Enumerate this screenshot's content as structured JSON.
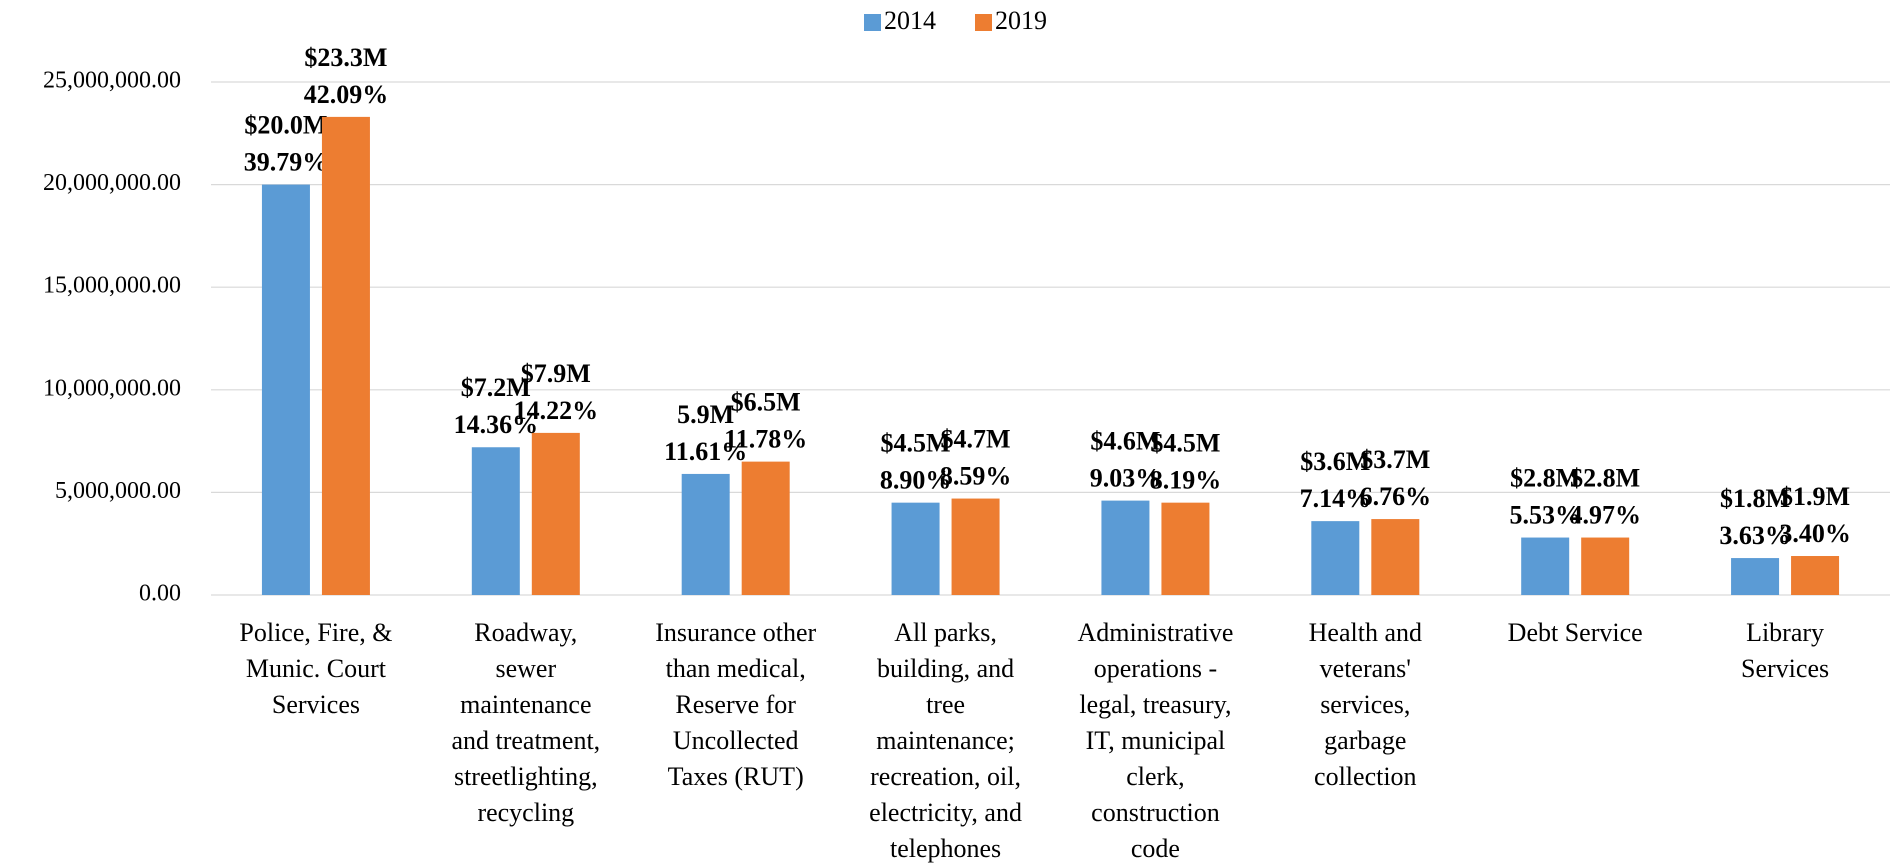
{
  "chart_data": {
    "type": "bar",
    "categories": [
      [
        "Police, Fire, &",
        "Munic. Court",
        "Services"
      ],
      [
        "Roadway,",
        "sewer",
        "maintenance",
        "and treatment,",
        "streetlighting,",
        "recycling"
      ],
      [
        "Insurance other",
        "than medical,",
        "Reserve for",
        "Uncollected",
        "Taxes (RUT)"
      ],
      [
        "All parks,",
        "building, and",
        "tree",
        "maintenance;",
        "recreation, oil,",
        "electricity, and",
        "telephones"
      ],
      [
        "Administrative",
        "operations -",
        "legal, treasury,",
        "IT, municipal",
        "clerk,",
        "construction",
        "code"
      ],
      [
        "Health and",
        "veterans'",
        "services,",
        "garbage",
        "collection"
      ],
      [
        "Debt Service"
      ],
      [
        "Library",
        "Services"
      ]
    ],
    "series": [
      {
        "name": "2014",
        "color": "#5b9bd5",
        "values": [
          20000000,
          7200000,
          5900000,
          4500000,
          4600000,
          3600000,
          2800000,
          1800000
        ],
        "value_labels": [
          [
            "$20.0M",
            "39.79%"
          ],
          [
            "$7.2M",
            "14.36%"
          ],
          [
            "5.9M",
            "11.61%"
          ],
          [
            "$4.5M",
            "8.90%"
          ],
          [
            "$4.6M",
            "9.03%"
          ],
          [
            "$3.6M",
            "7.14%"
          ],
          [
            "$2.8M",
            "5.53%"
          ],
          [
            "$1.8M",
            "3.63%"
          ]
        ]
      },
      {
        "name": "2019",
        "color": "#ed7d31",
        "values": [
          23300000,
          7900000,
          6500000,
          4700000,
          4500000,
          3700000,
          2800000,
          1900000
        ],
        "value_labels": [
          [
            "$23.3M",
            "42.09%"
          ],
          [
            "$7.9M",
            "14.22%"
          ],
          [
            "$6.5M",
            "11.78%"
          ],
          [
            "$4.7M",
            "8.59%"
          ],
          [
            "$4.5M",
            "8.19%"
          ],
          [
            "$3.7M",
            "6.76%"
          ],
          [
            "$2.8M",
            "4.97%"
          ],
          [
            "$1.9M",
            "3.40%"
          ]
        ]
      }
    ],
    "ylim": [
      0,
      25000000
    ],
    "yticks": [
      {
        "value": 0,
        "label": "0.00"
      },
      {
        "value": 5000000,
        "label": "5,000,000.00"
      },
      {
        "value": 10000000,
        "label": "10,000,000.00"
      },
      {
        "value": 15000000,
        "label": "15,000,000.00"
      },
      {
        "value": 20000000,
        "label": "20,000,000.00"
      },
      {
        "value": 25000000,
        "label": "25,000,000.00"
      }
    ],
    "grid": true,
    "legend": "top"
  }
}
